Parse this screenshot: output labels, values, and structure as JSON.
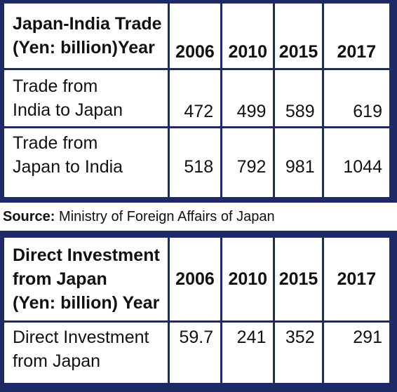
{
  "trade_table": {
    "title_line1": "Japan-India Trade",
    "title_line2": "(Yen: billion)Year",
    "years": [
      "2006",
      "2010",
      "2015",
      "2017"
    ],
    "rows": [
      {
        "label_line1": "Trade from",
        "label_line2": "India to Japan",
        "values": [
          "472",
          "499",
          "589",
          "619"
        ]
      },
      {
        "label_line1": "Trade from",
        "label_line2": "Japan to India",
        "values": [
          "518",
          "792",
          "981",
          "1044"
        ]
      }
    ]
  },
  "source": {
    "label": "Source:",
    "text": "Ministry of Foreign Affairs of Japan"
  },
  "investment_table": {
    "title_line1": "Direct Investment",
    "title_line2": "from Japan",
    "title_line3": "(Yen: billion) Year",
    "years": [
      "2006",
      "2010",
      "2015",
      "2017"
    ],
    "rows": [
      {
        "label_line1": "Direct Investment",
        "label_line2": "from Japan",
        "values": [
          "59.7",
          "241",
          "352",
          "291"
        ]
      }
    ]
  },
  "colors": {
    "border": "#1d2a66",
    "cell": "#ffffff",
    "text": "#111111"
  }
}
